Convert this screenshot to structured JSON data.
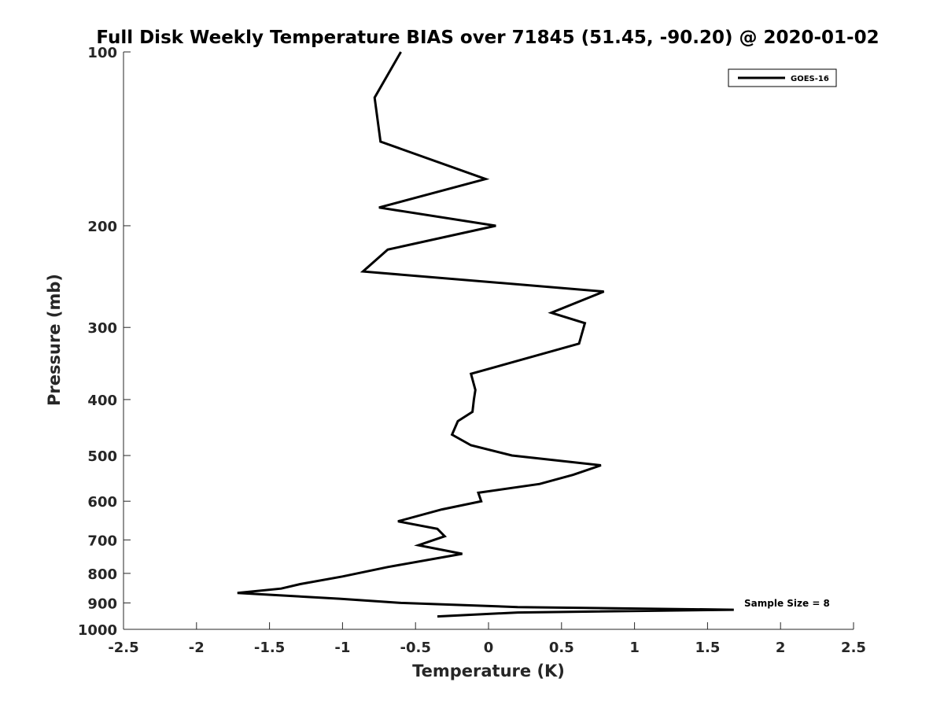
{
  "chart_data": {
    "type": "line",
    "title": "Full Disk Weekly Temperature BIAS over 71845 (51.45, -90.20) @ 2020-01-02",
    "xlabel": "Temperature (K)",
    "ylabel": "Pressure (mb)",
    "xlim": [
      -2.5,
      2.5
    ],
    "ylim": [
      100,
      1000
    ],
    "y_scale": "log",
    "y_reversed": true,
    "x_ticks": [
      "-2.5",
      "-2",
      "-1.5",
      "-1",
      "-0.5",
      "0",
      "0.5",
      "1",
      "1.5",
      "2",
      "2.5"
    ],
    "y_ticks": [
      "100",
      "200",
      "300",
      "400",
      "500",
      "600",
      "700",
      "800",
      "900",
      "1000"
    ],
    "grid": false,
    "legend_position": "top-right",
    "series": [
      {
        "name": "GOES-16",
        "color": "#000000",
        "points": [
          {
            "x": -0.6,
            "y": 100
          },
          {
            "x": -0.78,
            "y": 120
          },
          {
            "x": -0.74,
            "y": 143
          },
          {
            "x": -0.02,
            "y": 166
          },
          {
            "x": -0.75,
            "y": 186
          },
          {
            "x": 0.05,
            "y": 200
          },
          {
            "x": -0.69,
            "y": 220
          },
          {
            "x": -0.86,
            "y": 240
          },
          {
            "x": 0.79,
            "y": 260
          },
          {
            "x": 0.43,
            "y": 283
          },
          {
            "x": 0.66,
            "y": 295
          },
          {
            "x": 0.62,
            "y": 320
          },
          {
            "x": -0.12,
            "y": 361
          },
          {
            "x": -0.09,
            "y": 385
          },
          {
            "x": -0.1,
            "y": 400
          },
          {
            "x": -0.11,
            "y": 420
          },
          {
            "x": -0.21,
            "y": 436
          },
          {
            "x": -0.25,
            "y": 460
          },
          {
            "x": -0.12,
            "y": 480
          },
          {
            "x": 0.16,
            "y": 500
          },
          {
            "x": 0.77,
            "y": 520
          },
          {
            "x": 0.58,
            "y": 540
          },
          {
            "x": 0.35,
            "y": 560
          },
          {
            "x": -0.07,
            "y": 580
          },
          {
            "x": -0.05,
            "y": 600
          },
          {
            "x": -0.32,
            "y": 620
          },
          {
            "x": -0.62,
            "y": 650
          },
          {
            "x": -0.35,
            "y": 670
          },
          {
            "x": -0.3,
            "y": 690
          },
          {
            "x": -0.48,
            "y": 715
          },
          {
            "x": -0.18,
            "y": 740
          },
          {
            "x": -0.69,
            "y": 780
          },
          {
            "x": -1.0,
            "y": 810
          },
          {
            "x": -1.29,
            "y": 835
          },
          {
            "x": -1.42,
            "y": 850
          },
          {
            "x": -1.72,
            "y": 865
          },
          {
            "x": -1.02,
            "y": 885
          },
          {
            "x": -0.6,
            "y": 900
          },
          {
            "x": 0.2,
            "y": 915
          },
          {
            "x": 1.68,
            "y": 925
          },
          {
            "x": 0.2,
            "y": 935
          },
          {
            "x": -0.35,
            "y": 950
          }
        ]
      }
    ],
    "annotations": [
      "Sample Size = 8"
    ]
  }
}
